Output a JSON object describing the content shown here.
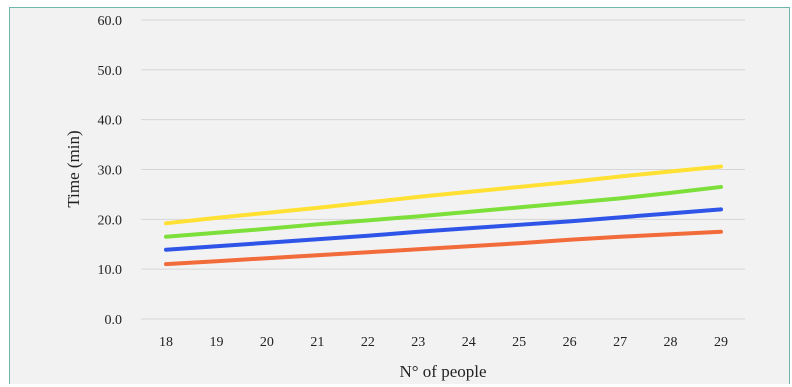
{
  "chart_data": {
    "type": "line",
    "title": "",
    "xlabel": "N° of people",
    "ylabel": "Time (min)",
    "x": [
      18,
      19,
      20,
      21,
      22,
      23,
      24,
      25,
      26,
      27,
      28,
      29
    ],
    "ylim": [
      0,
      60
    ],
    "yticks": [
      "0.0",
      "10.0",
      "20.0",
      "30.0",
      "40.0",
      "50.0",
      "60.0"
    ],
    "grid": true,
    "legend": "none",
    "series": [
      {
        "color": "#ffe033",
        "values": [
          19.2,
          20.3,
          21.3,
          22.3,
          23.4,
          24.5,
          25.5,
          26.5,
          27.5,
          28.6,
          29.6,
          30.6
        ]
      },
      {
        "color": "#7ddf3a",
        "values": [
          16.5,
          17.3,
          18.1,
          19.0,
          19.8,
          20.6,
          21.5,
          22.4,
          23.3,
          24.2,
          25.3,
          26.5
        ]
      },
      {
        "color": "#2f54e8",
        "values": [
          13.9,
          14.6,
          15.3,
          16.0,
          16.7,
          17.5,
          18.2,
          18.9,
          19.6,
          20.4,
          21.2,
          22.0
        ]
      },
      {
        "color": "#f26b3a",
        "values": [
          11.0,
          11.6,
          12.2,
          12.8,
          13.4,
          14.0,
          14.6,
          15.2,
          15.9,
          16.5,
          17.0,
          17.5
        ]
      }
    ]
  }
}
